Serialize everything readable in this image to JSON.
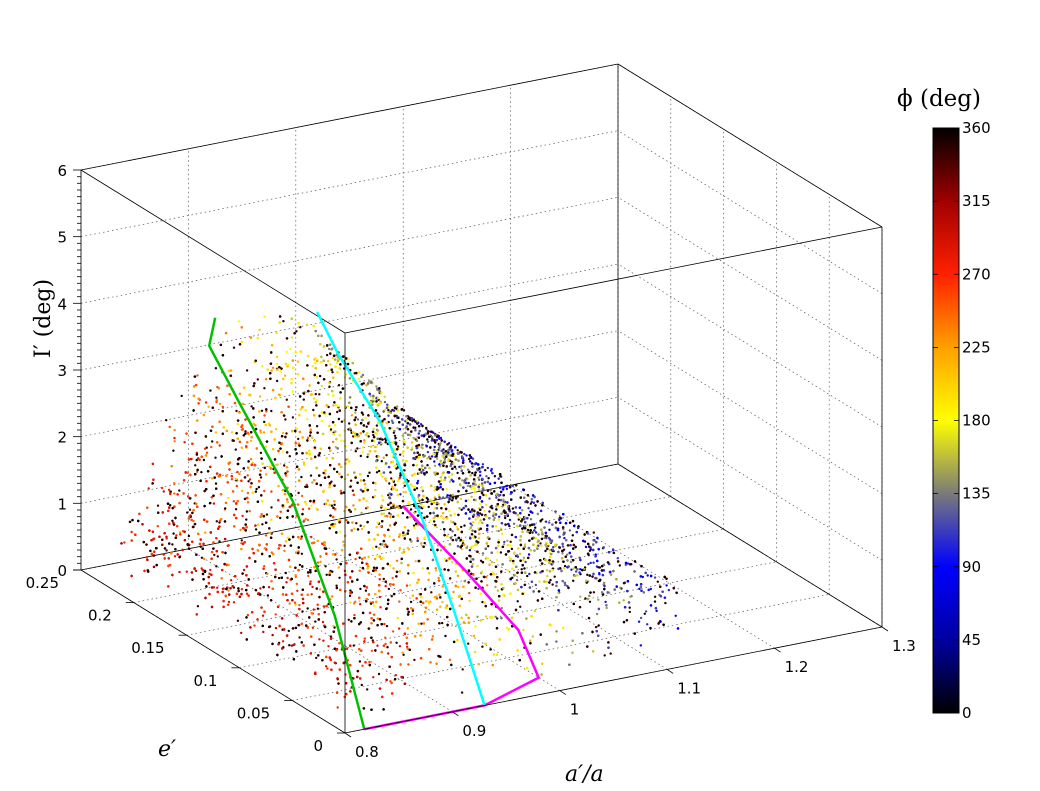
{
  "chart_data": {
    "type": "scatter",
    "projection": "3d",
    "x_axis": {
      "label": "a′/a",
      "range": [
        0.8,
        1.3
      ],
      "ticks": [
        "0.8",
        "0.9",
        "1",
        "1.1",
        "1.2",
        "1.3"
      ]
    },
    "y_axis": {
      "label": "e′",
      "range": [
        0,
        0.25
      ],
      "ticks": [
        "0",
        "0.05",
        "0.1",
        "0.15",
        "0.2",
        "0.25"
      ]
    },
    "z_axis": {
      "label": "I′ (deg)",
      "range": [
        0,
        6
      ],
      "ticks": [
        "0",
        "1",
        "2",
        "3",
        "4",
        "5",
        "6"
      ]
    },
    "grid": true,
    "colorbar": {
      "title": "ϕ (deg)",
      "range": [
        0,
        360
      ],
      "ticks": [
        "0",
        "45",
        "90",
        "135",
        "180",
        "225",
        "270",
        "315",
        "360"
      ],
      "colors": [
        "#000000",
        "#0000a0",
        "#0000ff",
        "#7a7a7a",
        "#ffff00",
        "#ffa000",
        "#ff2000",
        "#a00000",
        "#000000"
      ]
    },
    "surface_boundary": {
      "outer_edge_color": "#00c000",
      "lower_edge_color": "#ff00ff",
      "mid_curve_color": "#00ffff",
      "outer_edge": [
        {
          "a": 0.818,
          "e": 0.0,
          "I": 0.0
        },
        {
          "a": 0.82,
          "e": 0.03,
          "I": 1.4
        },
        {
          "a": 0.83,
          "e": 0.08,
          "I": 2.6
        },
        {
          "a": 0.85,
          "e": 0.15,
          "I": 3.3
        },
        {
          "a": 0.88,
          "e": 0.21,
          "I": 3.5
        },
        {
          "a": 0.92,
          "e": 0.245,
          "I": 3.45
        }
      ],
      "lower_edge": [
        {
          "a": 0.818,
          "e": 0.0,
          "I": 0.0
        },
        {
          "a": 0.87,
          "e": 0.0,
          "I": 0.0
        },
        {
          "a": 0.93,
          "e": 0.0,
          "I": 0.0
        },
        {
          "a": 1.0,
          "e": 0.02,
          "I": 0.0
        },
        {
          "a": 1.04,
          "e": 0.08,
          "I": 0.0
        },
        {
          "a": 1.07,
          "e": 0.16,
          "I": 0.0
        },
        {
          "a": 1.09,
          "e": 0.22,
          "I": 0.0
        },
        {
          "a": 1.1,
          "e": 0.25,
          "I": 0.0
        }
      ],
      "mid_curve": [
        {
          "a": 0.93,
          "e": 0.0,
          "I": 0.0
        },
        {
          "a": 0.95,
          "e": 0.05,
          "I": 0.9
        },
        {
          "a": 0.97,
          "e": 0.1,
          "I": 1.7
        },
        {
          "a": 0.99,
          "e": 0.16,
          "I": 2.5
        },
        {
          "a": 1.0,
          "e": 0.21,
          "I": 3.0
        },
        {
          "a": 1.01,
          "e": 0.24,
          "I": 3.3
        }
      ]
    }
  }
}
